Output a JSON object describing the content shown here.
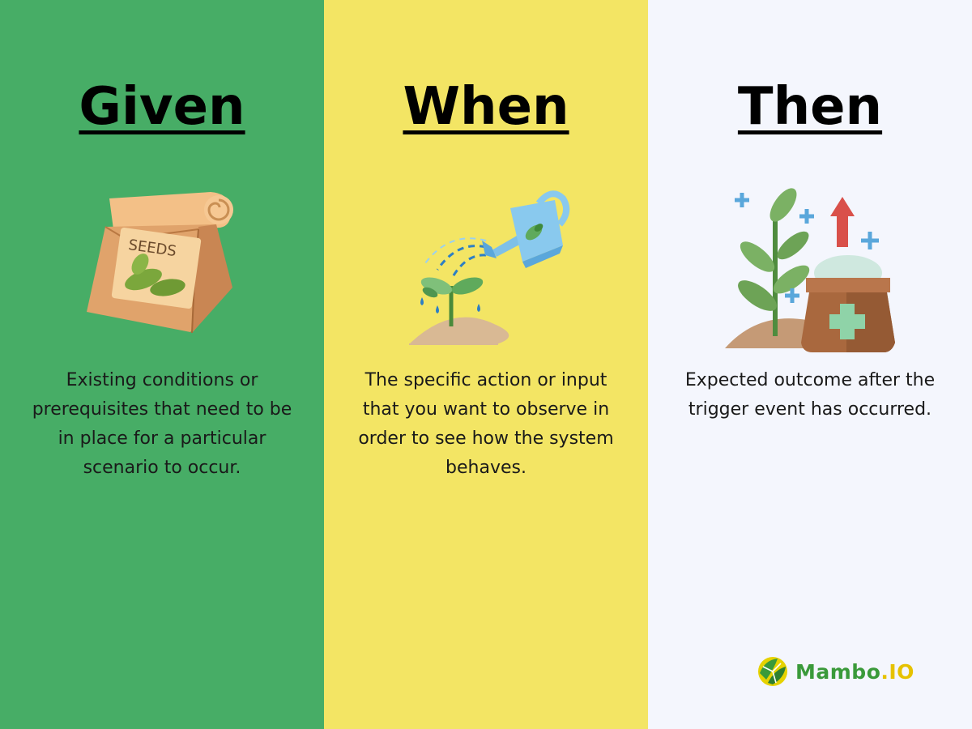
{
  "columns": [
    {
      "heading": "Given",
      "icon": "seed-bag-icon",
      "icon_label": "SEEDS",
      "description": "Existing conditions or prerequisites that need to be in place for a particular scenario to occur.",
      "color": "#47ad66"
    },
    {
      "heading": "When",
      "icon": "watering-can-icon",
      "description": "The specific action or input that you want to observe in order to see how the system behaves.",
      "color": "#f3e564"
    },
    {
      "heading": "Then",
      "icon": "growing-plant-icon",
      "description": "Expected outcome  after the trigger event has occurred.",
      "color": "#f4f6fd"
    }
  ],
  "brand": {
    "name": "Mambo",
    "tld": ".IO",
    "icon": "mambo-leaf-logo-icon"
  }
}
